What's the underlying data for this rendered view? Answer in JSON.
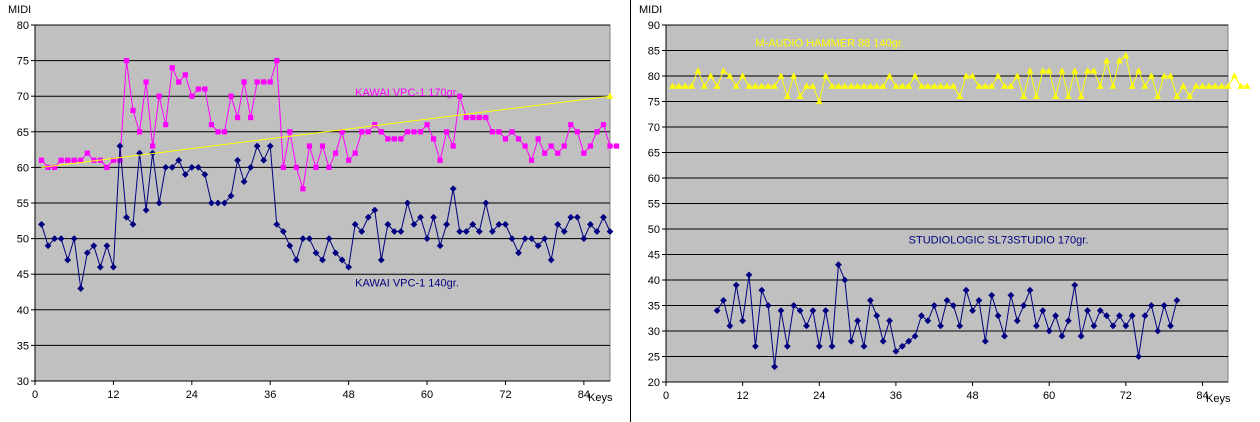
{
  "chart_data": [
    {
      "type": "line",
      "ylabel": "MIDI",
      "xlabel": "Keys",
      "xlim": [
        0,
        88
      ],
      "ylim": [
        30,
        80
      ],
      "xticks": [
        0,
        12,
        24,
        36,
        48,
        60,
        72,
        84
      ],
      "yticks": [
        30,
        35,
        40,
        45,
        50,
        55,
        60,
        65,
        70,
        75,
        80
      ],
      "grid": true,
      "annotations": [
        {
          "text": "KAWAI VPC-1  170gr.",
          "x": 49,
          "y": 70,
          "color": "#ff00ff"
        },
        {
          "text": "KAWAI VPC-1 140gr.",
          "x": 49,
          "y": 43.3,
          "color": "#000080"
        }
      ],
      "series": [
        {
          "name": "KAWAI VPC-1  170gr.",
          "color": "#ff00ff",
          "marker": "square",
          "start_key": 1,
          "values": [
            61,
            60,
            60,
            61,
            61,
            61,
            61,
            62,
            61,
            61,
            60,
            61,
            61,
            75,
            68,
            65,
            72,
            63,
            70,
            66,
            74,
            72,
            73,
            70,
            71,
            71,
            66,
            65,
            65,
            70,
            67,
            72,
            67,
            72,
            72,
            72,
            75,
            60,
            65,
            60,
            57,
            63,
            60,
            63,
            60,
            62,
            65,
            61,
            62,
            65,
            65,
            66,
            65,
            64,
            64,
            64,
            65,
            65,
            65,
            66,
            64,
            61,
            65,
            63,
            70,
            67,
            67,
            67,
            67,
            65,
            65,
            64,
            65,
            64,
            63,
            61,
            64,
            62,
            63,
            62,
            63,
            66,
            65,
            62,
            63,
            65,
            66,
            63,
            63
          ]
        },
        {
          "name": "KAWAI VPC-1 140gr.",
          "color": "#000080",
          "marker": "diamond",
          "start_key": 1,
          "values": [
            52,
            49,
            50,
            50,
            47,
            50,
            43,
            48,
            49,
            46,
            49,
            46,
            63,
            53,
            52,
            62,
            54,
            62,
            55,
            60,
            60,
            61,
            59,
            60,
            60,
            59,
            55,
            55,
            55,
            56,
            61,
            58,
            60,
            63,
            61,
            63,
            52,
            51,
            49,
            47,
            50,
            50,
            48,
            47,
            50,
            48,
            47,
            46,
            52,
            51,
            53,
            54,
            47,
            52,
            51,
            51,
            55,
            52,
            53,
            50,
            53,
            49,
            52,
            57,
            51,
            51,
            52,
            51,
            55,
            51,
            52,
            52,
            50,
            48,
            50,
            50,
            49,
            50,
            47,
            52,
            51,
            53,
            53,
            50,
            52,
            51,
            53,
            51
          ]
        },
        {
          "name": "",
          "color": "#ffff00",
          "marker": "triangle",
          "marker_last_only": true,
          "x": [
            1,
            88
          ],
          "values": [
            60,
            70
          ]
        }
      ]
    },
    {
      "type": "line",
      "ylabel": "MIDI",
      "xlabel": "Keys",
      "xlim": [
        0,
        88
      ],
      "ylim": [
        20,
        90
      ],
      "xticks": [
        0,
        12,
        24,
        36,
        48,
        60,
        72,
        84
      ],
      "yticks": [
        20,
        25,
        30,
        35,
        40,
        45,
        50,
        55,
        60,
        65,
        70,
        75,
        80,
        85,
        90
      ],
      "grid": true,
      "annotations": [
        {
          "text": "M-AUDIO HAMMER 88  140gr.",
          "x": 14,
          "y": 85.8,
          "color": "#ffff00"
        },
        {
          "text": "STUDIOLOGIC SL73STUDIO  170gr.",
          "x": 38,
          "y": 47.2,
          "color": "#000080"
        }
      ],
      "series": [
        {
          "name": "M-AUDIO HAMMER 88  140gr.",
          "color": "#ffff00",
          "marker": "triangle",
          "start_key": 1,
          "values": [
            78,
            78,
            78,
            78,
            81,
            78,
            80,
            78,
            81,
            80,
            78,
            80,
            78,
            78,
            78,
            78,
            78,
            80,
            76,
            80,
            76,
            78,
            78,
            75,
            80,
            78,
            78,
            78,
            78,
            78,
            78,
            78,
            78,
            78,
            80,
            78,
            78,
            78,
            80,
            78,
            78,
            78,
            78,
            78,
            78,
            76,
            80,
            80,
            78,
            78,
            78,
            80,
            78,
            78,
            80,
            76,
            81,
            76,
            81,
            81,
            76,
            81,
            76,
            81,
            76,
            81,
            81,
            78,
            83,
            78,
            83,
            84,
            78,
            81,
            78,
            80,
            76,
            80,
            80,
            76,
            78,
            76,
            78,
            78,
            78,
            78,
            78,
            78,
            80,
            78,
            78
          ]
        },
        {
          "name": "STUDIOLOGIC SL73STUDIO  170gr.",
          "color": "#000080",
          "marker": "diamond",
          "start_key": 8,
          "values": [
            34,
            36,
            31,
            39,
            32,
            41,
            27,
            38,
            35,
            23,
            34,
            27,
            35,
            34,
            31,
            34,
            27,
            34,
            27,
            43,
            40,
            28,
            32,
            27,
            36,
            33,
            28,
            32,
            26,
            27,
            28,
            29,
            33,
            32,
            35,
            31,
            36,
            35,
            31,
            38,
            34,
            36,
            28,
            37,
            33,
            29,
            37,
            32,
            35,
            38,
            31,
            34,
            30,
            33,
            29,
            32,
            39,
            29,
            34,
            31,
            34,
            33,
            31,
            33,
            31,
            33,
            25,
            33,
            35,
            30,
            35,
            31,
            36
          ]
        }
      ]
    }
  ]
}
